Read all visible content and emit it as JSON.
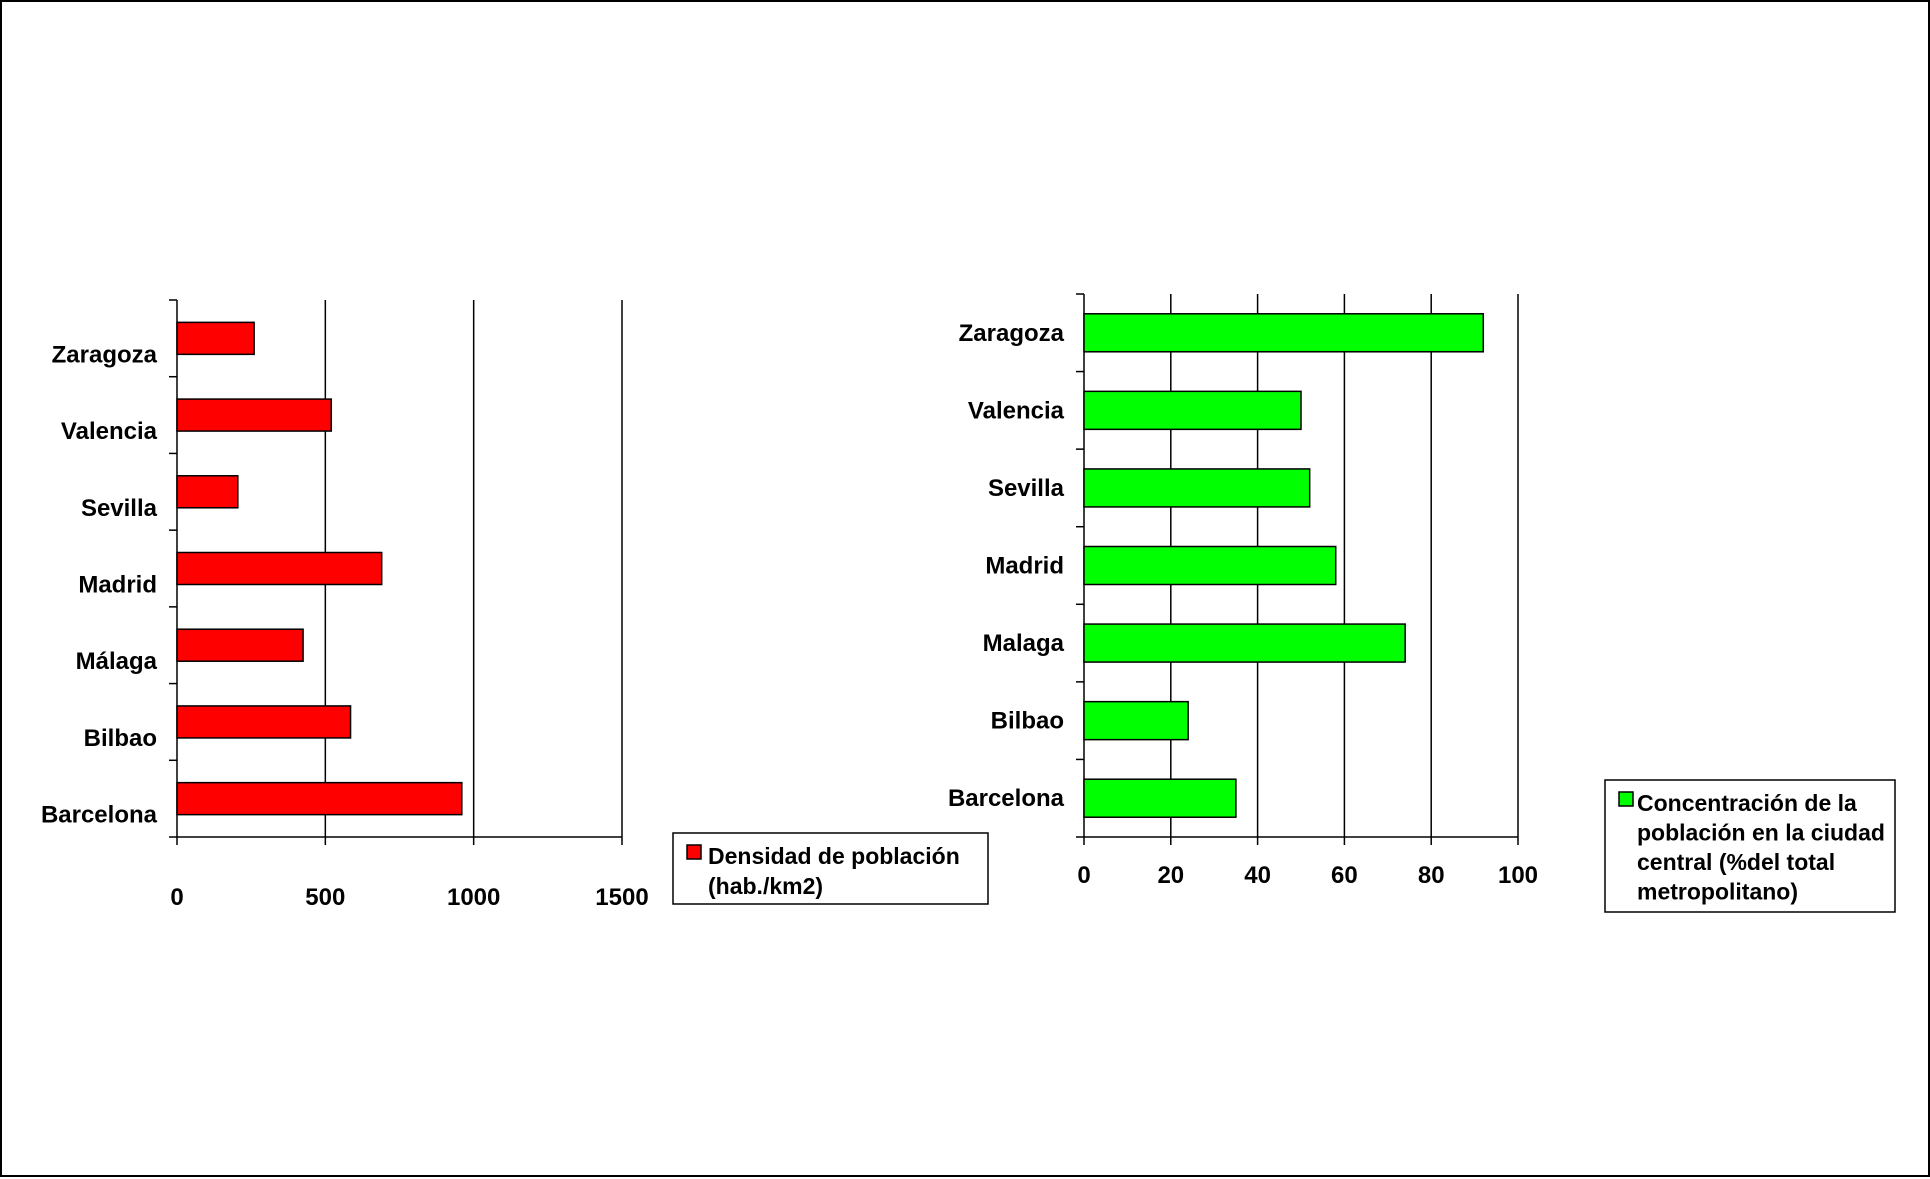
{
  "chart_data": [
    {
      "type": "bar",
      "orientation": "horizontal",
      "categories": [
        "Barcelona",
        "Bilbao",
        "Málaga",
        "Madrid",
        "Sevilla",
        "Valencia",
        "Zaragoza"
      ],
      "series": [
        {
          "name": "Densidad de población (hab./km2)",
          "legend_lines": [
            "Densidad de población",
            "(hab./km2)"
          ],
          "color": "#ff0000",
          "values": [
            960,
            585,
            425,
            690,
            205,
            520,
            260
          ]
        }
      ],
      "xlim": [
        0,
        1500
      ],
      "xticks": [
        "0",
        "500",
        "1000",
        "1500"
      ],
      "grid": true,
      "legend_position": "right"
    },
    {
      "type": "bar",
      "orientation": "horizontal",
      "categories": [
        "Barcelona",
        "Bilbao",
        "Malaga",
        "Madrid",
        "Sevilla",
        "Valencia",
        "Zaragoza"
      ],
      "series": [
        {
          "name": "Concentración de la población en la ciudad central (%del total metropolitano)",
          "legend_lines": [
            "Concentración de la",
            "población en la ciudad",
            "central (%del total",
            "metropolitano)"
          ],
          "color": "#00ff00",
          "values": [
            35,
            24,
            74,
            58,
            52,
            50,
            92
          ]
        }
      ],
      "xlim": [
        0,
        100
      ],
      "xticks": [
        "0",
        "20",
        "40",
        "60",
        "80",
        "100"
      ],
      "grid": true,
      "legend_position": "right"
    }
  ]
}
